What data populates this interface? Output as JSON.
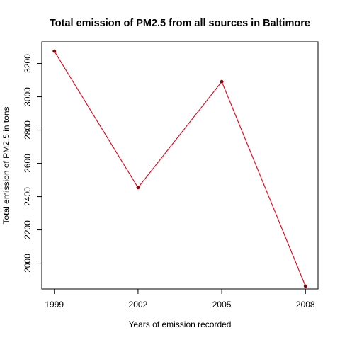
{
  "chart_data": {
    "type": "line",
    "title": "Total emission of PM2.5 from all sources in Baltimore",
    "xlabel": "Years  of emission recorded",
    "ylabel": "Total emission of PM2.5 in tons",
    "x": [
      1999,
      2002,
      2005,
      2008
    ],
    "x_ticks": [
      "1999",
      "2002",
      "2005",
      "2008"
    ],
    "y_ticks": [
      "2000",
      "2200",
      "2400",
      "2600",
      "2800",
      "3000",
      "3200"
    ],
    "series": [
      {
        "values": [
          3274,
          2454,
          3091,
          1862
        ]
      }
    ],
    "xlim": [
      1998.55,
      2008.45
    ],
    "ylim": [
      1845,
      3330
    ],
    "grid": false,
    "legend": "none",
    "colors": {
      "line": "#e0001a",
      "point": "#8b0000",
      "axis": "#000000",
      "background": "#ffffff"
    }
  }
}
